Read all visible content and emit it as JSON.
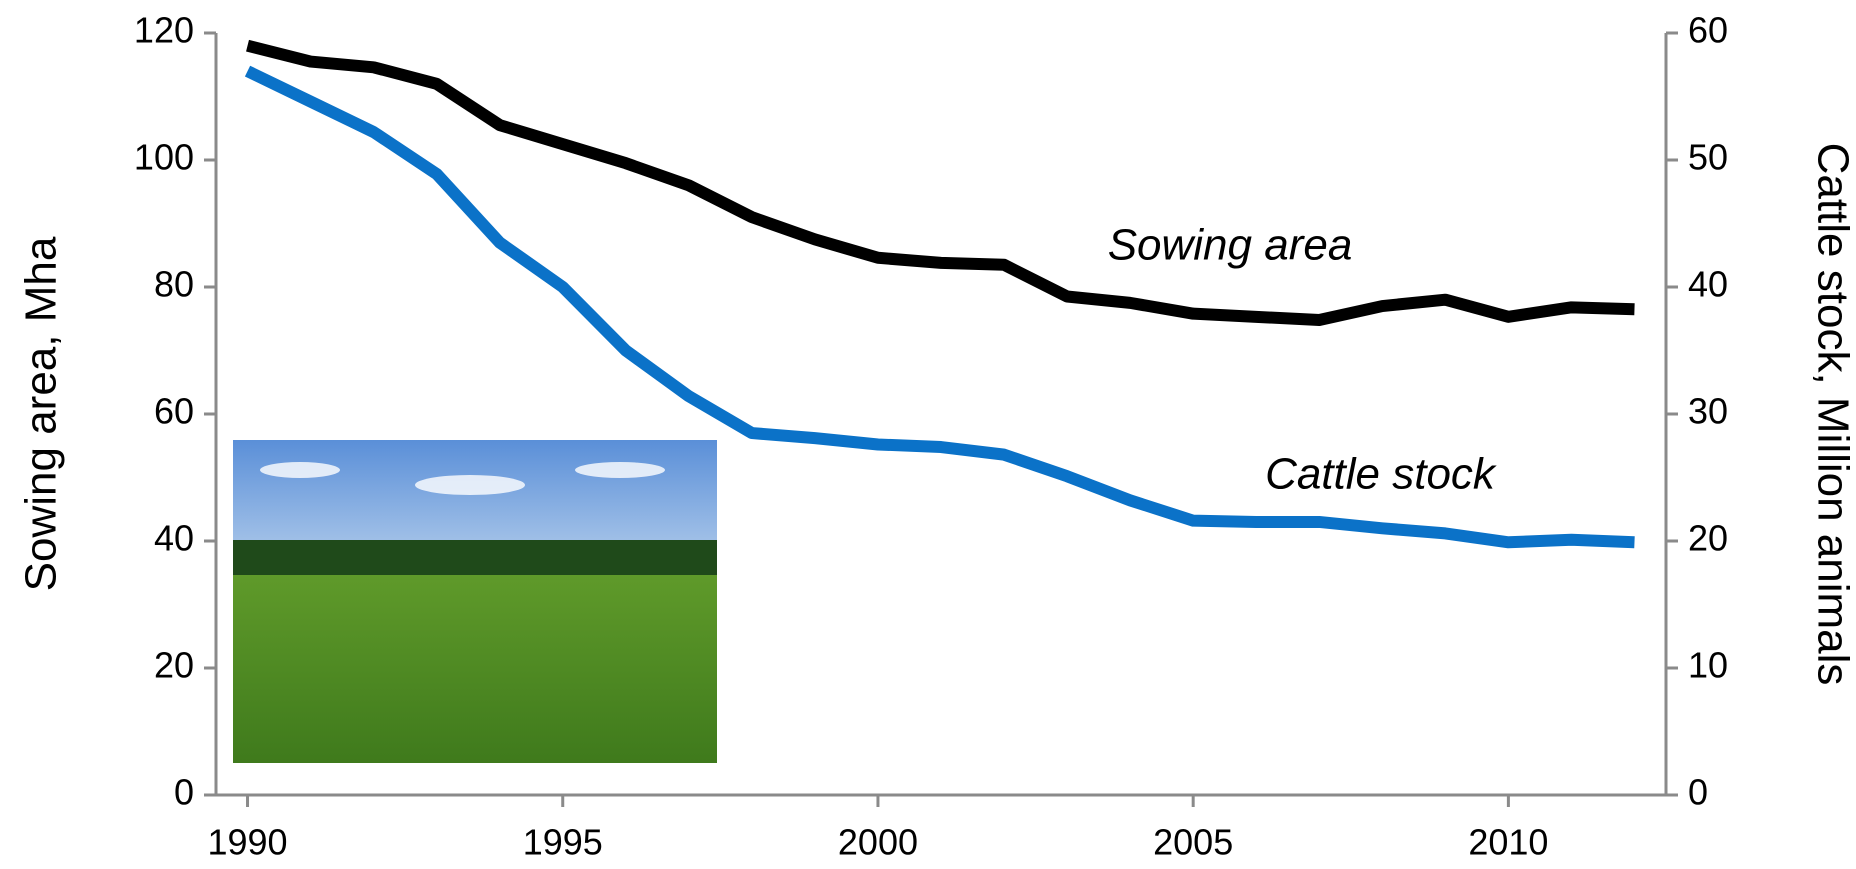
{
  "chart_data": {
    "type": "line",
    "x": [
      1990,
      1991,
      1992,
      1993,
      1994,
      1995,
      1996,
      1997,
      1998,
      1999,
      2000,
      2001,
      2002,
      2003,
      2004,
      2005,
      2006,
      2007,
      2008,
      2009,
      2010,
      2011,
      2012
    ],
    "series": [
      {
        "name": "Sowing area",
        "color": "#000000",
        "values": [
          118,
          115.5,
          114.6,
          112,
          105.5,
          102.5,
          99.5,
          96,
          91,
          87.5,
          84.6,
          83.8,
          83.5,
          78.5,
          77.5,
          75.8,
          75.3,
          74.8,
          77,
          78,
          75.3,
          76.8,
          76.5
        ]
      },
      {
        "name": "Cattle stock",
        "color": "#0b72c8",
        "axis": "y2",
        "values": [
          57,
          54.6,
          52.2,
          48.9,
          43.5,
          40,
          35,
          31.4,
          28.5,
          28.1,
          27.6,
          27.4,
          26.8,
          25.1,
          23.2,
          21.6,
          21.5,
          21.5,
          21,
          20.6,
          19.9,
          20.1,
          19.9
        ]
      }
    ],
    "ylabel": "Sowing area, Mha",
    "y2label": "Cattle stock, Million animals",
    "xlim": [
      1989.5,
      2012.5
    ],
    "xticks": [
      1990,
      1995,
      2000,
      2005,
      2010
    ],
    "ylim": [
      0,
      120
    ],
    "yticks": [
      0,
      20,
      40,
      60,
      80,
      100,
      120
    ],
    "y2lim": [
      0,
      60
    ],
    "y2ticks": [
      0,
      10,
      20,
      30,
      40,
      50,
      60
    ],
    "grid": false
  }
}
